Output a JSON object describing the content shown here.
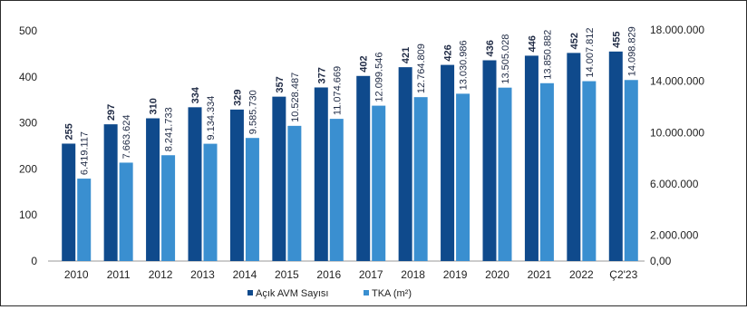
{
  "chart_data": {
    "type": "bar",
    "categories": [
      "2010",
      "2011",
      "2012",
      "2013",
      "2014",
      "2015",
      "2016",
      "2017",
      "2018",
      "2019",
      "2020",
      "2021",
      "2022",
      "Ç2'23"
    ],
    "series": [
      {
        "name": "Açık AVM Sayısı",
        "axis": "left",
        "color": "#0f4a8c",
        "values": [
          255,
          297,
          310,
          334,
          329,
          357,
          377,
          402,
          421,
          426,
          436,
          446,
          452,
          455
        ],
        "labels": [
          "255",
          "297",
          "310",
          "334",
          "329",
          "357",
          "377",
          "402",
          "421",
          "426",
          "436",
          "446",
          "452",
          "455"
        ]
      },
      {
        "name": "TKA (m²)",
        "axis": "right",
        "color": "#3a8fd0",
        "values": [
          6419117,
          7663624,
          8241733,
          9134334,
          9585730,
          10528487,
          11074669,
          12099546,
          12764809,
          13030986,
          13505028,
          13850882,
          14007812,
          14098829
        ],
        "labels": [
          "6.419.117",
          "7.663.624",
          "8.241.733",
          "9.134.334",
          "9.585.730",
          "10.528.487",
          "11.074.669",
          "12.099.546",
          "12.764.809",
          "13.030.986",
          "13.505.028",
          "13.850.882",
          "14.007.812",
          "14.098.829"
        ]
      }
    ],
    "left_axis": {
      "ticks": [
        0,
        100,
        200,
        300,
        400,
        500
      ],
      "tick_labels": [
        "0",
        "100",
        "200",
        "300",
        "400",
        "500"
      ],
      "ylim": [
        0,
        500
      ]
    },
    "right_axis": {
      "ticks": [
        0,
        2000000,
        6000000,
        10000000,
        14000000,
        18000000
      ],
      "tick_labels": [
        "0,00",
        "2.000.000",
        "6.000.000",
        "10.000.000",
        "14.000.000",
        "18.000.000"
      ],
      "ylim": [
        0,
        18000000
      ]
    },
    "grid": false,
    "legend_position": "bottom-center"
  }
}
